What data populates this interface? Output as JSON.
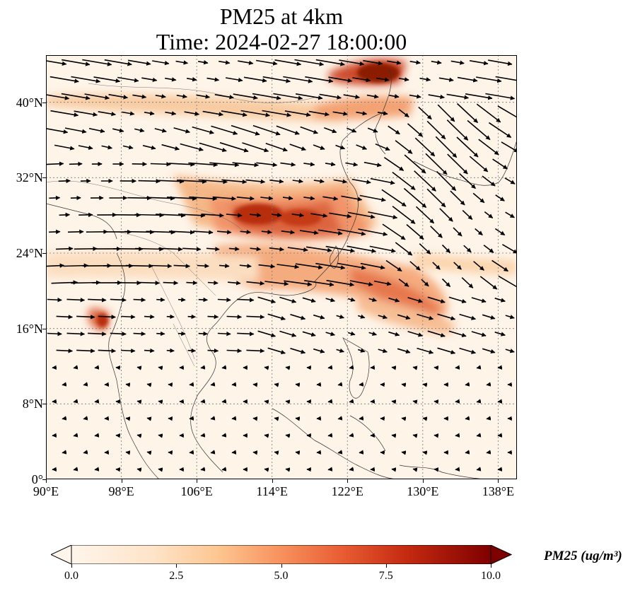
{
  "title_line1": "PM25 at 4km",
  "title_line2": "Time: 2024-02-27 18:00:00",
  "map": {
    "lon_range": [
      90,
      140
    ],
    "lat_range": [
      0,
      45
    ],
    "lat_ticks": [
      {
        "value": 0,
        "label": "0°"
      },
      {
        "value": 8,
        "label": "8°N"
      },
      {
        "value": 16,
        "label": "16°N"
      },
      {
        "value": 24,
        "label": "24°N"
      },
      {
        "value": 32,
        "label": "32°N"
      },
      {
        "value": 40,
        "label": "40°N"
      }
    ],
    "lon_ticks": [
      {
        "value": 90,
        "label": "90°E"
      },
      {
        "value": 98,
        "label": "98°E"
      },
      {
        "value": 106,
        "label": "106°E"
      },
      {
        "value": 114,
        "label": "114°E"
      },
      {
        "value": 122,
        "label": "122°E"
      },
      {
        "value": 130,
        "label": "130°E"
      },
      {
        "value": 138,
        "label": "138°E"
      }
    ],
    "gridlines": true,
    "colors": {
      "low": "#fff5eb",
      "mid": "#fdae6b",
      "high": "#d94801",
      "max": "#7f0000"
    }
  },
  "colorbar": {
    "label": "PM25 (ug/m³)",
    "min": 0,
    "max": 10,
    "ticks": [
      "0.0",
      "2.5",
      "5.0",
      "7.5",
      "10.0"
    ],
    "extend": "both",
    "colormap": "OrRd"
  }
}
